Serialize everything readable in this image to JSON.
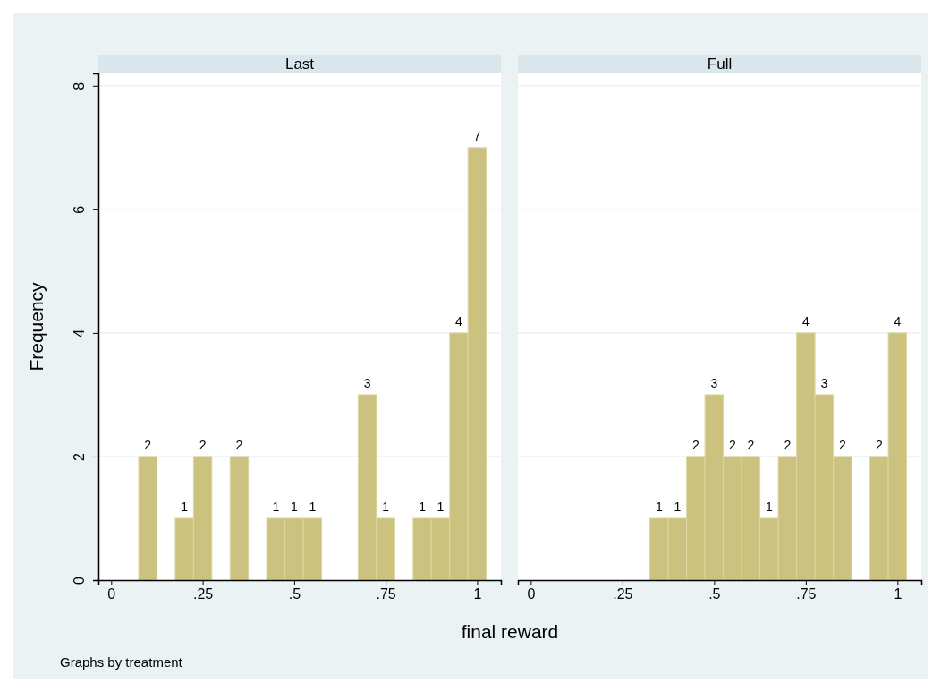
{
  "chart_data": [
    {
      "type": "histogram",
      "title": "Last",
      "ylabel": "Frequency",
      "annotations": [
        "Graphs by treatment"
      ],
      "bins": [
        0.075,
        0.125,
        0.175,
        0.225,
        0.275,
        0.325,
        0.375,
        0.425,
        0.475,
        0.525,
        0.575,
        0.625,
        0.675,
        0.725,
        0.775,
        0.825,
        0.875,
        0.925,
        0.975,
        1.025
      ],
      "values": [
        2,
        0,
        1,
        2,
        0,
        2,
        0,
        1,
        1,
        1,
        0,
        0,
        3,
        1,
        0,
        1,
        1,
        4,
        7
      ],
      "value_labels": [
        "2",
        null,
        "1",
        "2",
        null,
        "2",
        null,
        "1",
        "1",
        "1",
        null,
        null,
        "3",
        "1",
        null,
        "1",
        "1",
        "4",
        "7"
      ],
      "color": "#cbc280",
      "xlim": [
        -0.035,
        1.065
      ],
      "xticks": [
        {
          "value": 0,
          "label": "0"
        },
        {
          "value": 0.25,
          "label": ".25"
        },
        {
          "value": 0.5,
          "label": ".5"
        },
        {
          "value": 0.75,
          "label": ".75"
        },
        1
      ],
      "ylim": [
        0,
        8.2
      ],
      "yticks": [
        {
          "value": 0,
          "label": "0"
        },
        2,
        4,
        6,
        8
      ],
      "grid": "y"
    },
    {
      "type": "histogram",
      "title": "Full",
      "xlabel": "final reward",
      "bins": [
        0.325,
        0.375,
        0.425,
        0.475,
        0.525,
        0.575,
        0.625,
        0.675,
        0.725,
        0.775,
        0.825,
        0.875,
        0.925,
        0.975,
        1.025
      ],
      "values": [
        1,
        1,
        2,
        3,
        2,
        2,
        1,
        2,
        4,
        3,
        2,
        0,
        2,
        4
      ],
      "value_labels": [
        "1",
        "1",
        "2",
        "3",
        "2",
        "2",
        "1",
        "2",
        "4",
        "3",
        "2",
        null,
        "2",
        "4"
      ],
      "color": "#cbc280",
      "xlim": [
        -0.035,
        1.065
      ],
      "xticks": [
        {
          "value": 0,
          "label": "0"
        },
        {
          "value": 0.25,
          "label": ".25"
        },
        {
          "value": 0.5,
          "label": ".5"
        },
        {
          "value": 0.75,
          "label": ".75"
        },
        1
      ],
      "ylim": [
        0,
        8.2
      ],
      "yticks": [
        0,
        2,
        4,
        6,
        8
      ],
      "grid": "y",
      "tick_labels": "x"
    }
  ]
}
